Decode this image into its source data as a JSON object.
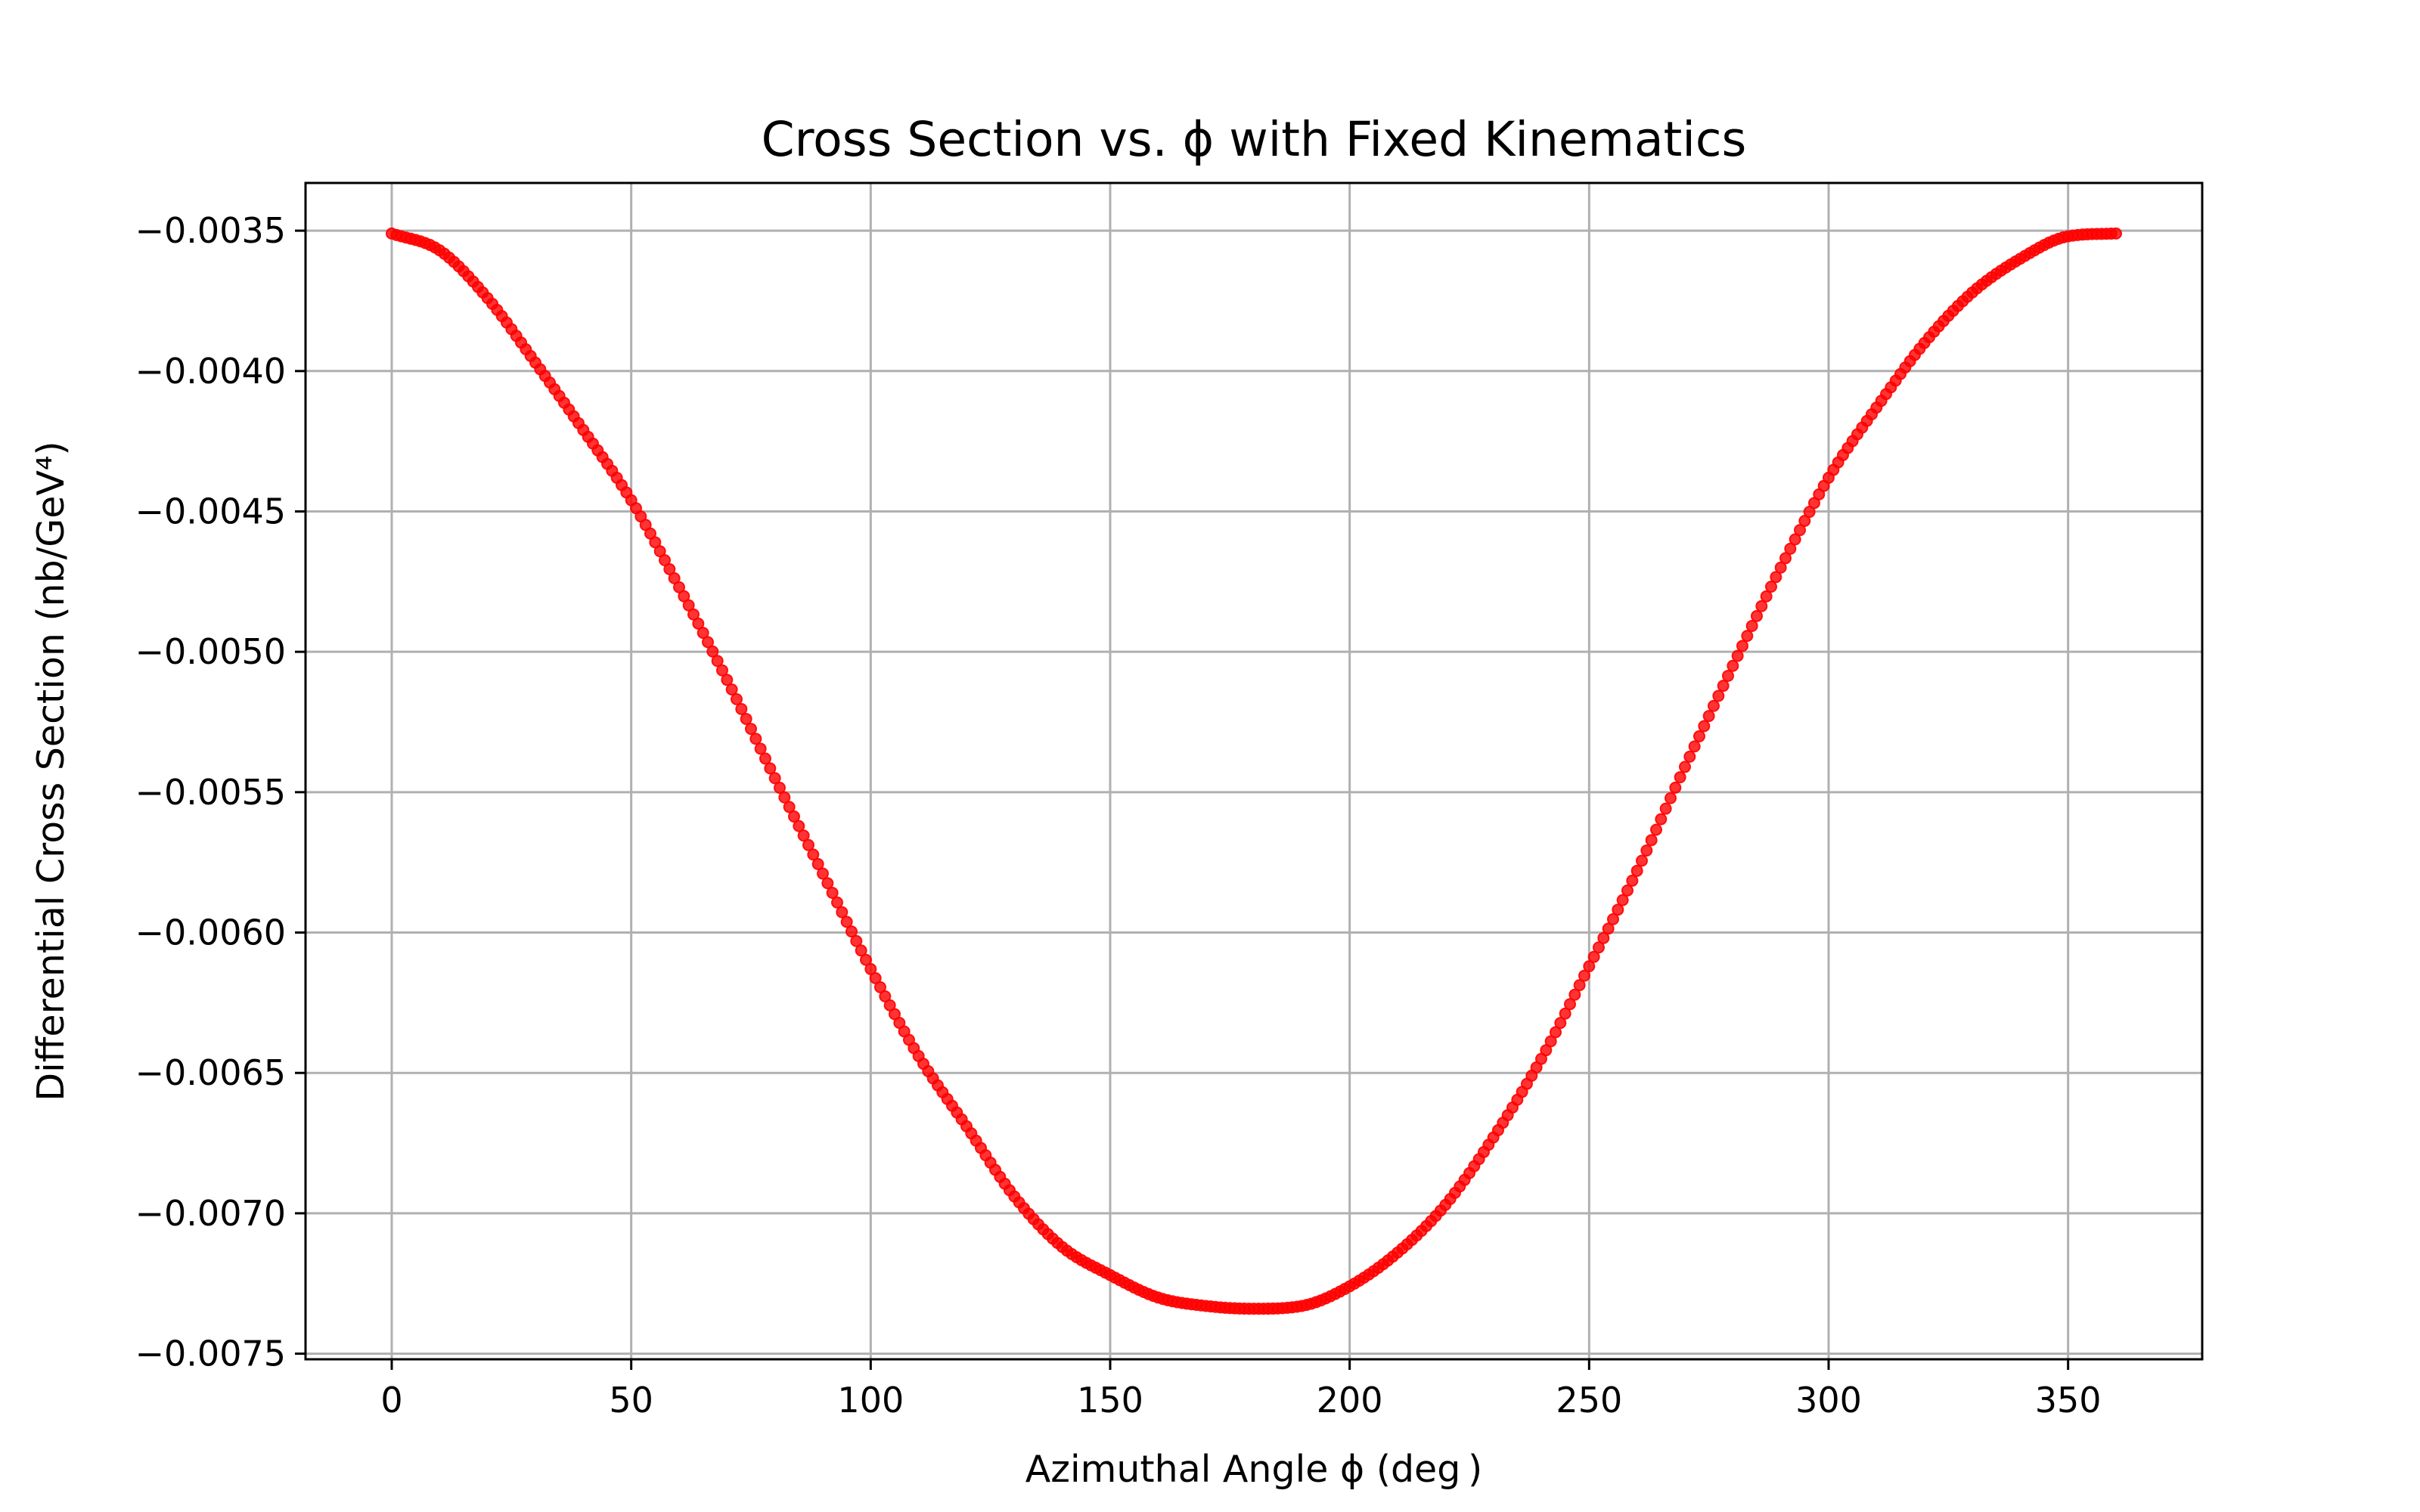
{
  "chart_data": {
    "type": "scatter",
    "title": "Cross Section vs. ϕ with Fixed Kinematics",
    "xlabel": "Azimuthal Angle ϕ (deg )",
    "ylabel": "Differential Cross Section (nb/GeV⁴)",
    "xlim": [
      -18,
      378
    ],
    "ylim": [
      -0.00752,
      -0.00333
    ],
    "x_ticks": [
      0,
      50,
      100,
      150,
      200,
      250,
      300,
      350
    ],
    "x_tick_labels": [
      "0",
      "50",
      "100",
      "150",
      "200",
      "250",
      "300",
      "350"
    ],
    "y_ticks": [
      -0.0035,
      -0.004,
      -0.0045,
      -0.005,
      -0.0055,
      -0.006,
      -0.0065,
      -0.007,
      -0.0075
    ],
    "y_tick_labels": [
      "−0.0035",
      "−0.0040",
      "−0.0045",
      "−0.0050",
      "−0.0055",
      "−0.0060",
      "−0.0065",
      "−0.0070",
      "−0.0075"
    ],
    "grid": true,
    "series": [
      {
        "color": "#ff0000",
        "marker": "circle",
        "x": [
          0,
          10,
          20,
          30,
          40,
          50,
          60,
          70,
          80,
          90,
          100,
          110,
          120,
          130,
          140,
          150,
          160,
          170,
          180,
          190,
          200,
          210,
          220,
          230,
          240,
          250,
          260,
          270,
          280,
          290,
          300,
          310,
          320,
          330,
          340,
          350,
          360
        ],
        "y": [
          -0.00351,
          -0.00357,
          -0.00374,
          -0.00397,
          -0.00421,
          -0.00446,
          -0.00477,
          -0.0051,
          -0.00545,
          -0.00579,
          -0.00613,
          -0.00644,
          -0.00669,
          -0.00694,
          -0.00712,
          -0.00722,
          -0.0073,
          -0.00733,
          -0.00734,
          -0.00733,
          -0.00726,
          -0.00714,
          -0.00697,
          -0.00673,
          -0.00645,
          -0.00612,
          -0.00578,
          -0.00541,
          -0.00505,
          -0.0047,
          -0.00438,
          -0.00413,
          -0.0039,
          -0.00372,
          -0.0036,
          -0.00352,
          -0.00351
        ]
      }
    ]
  }
}
